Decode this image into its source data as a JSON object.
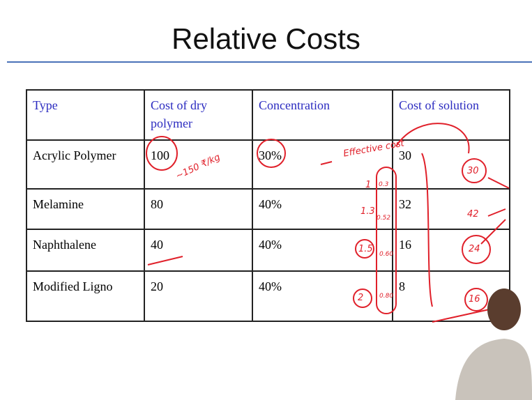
{
  "header": {
    "title": "Relative Costs"
  },
  "table": {
    "columns": [
      "Type",
      "Cost of dry polymer",
      "Concentration",
      "Cost of solution"
    ],
    "rows": [
      [
        "Acrylic Polymer",
        "100",
        "30%",
        "30"
      ],
      [
        "Melamine",
        "80",
        "40%",
        "32"
      ],
      [
        "Naphthalene",
        "40",
        "40%",
        "16"
      ],
      [
        "Modified Ligno",
        "20",
        "40%",
        "8"
      ]
    ]
  },
  "annotations": [
    "~150 ₹/kg",
    "Effective cost",
    "1",
    "0.3",
    "1.3",
    "0.52",
    "1.5",
    "0.60",
    "2",
    "0.80",
    "30",
    "42",
    "24",
    "16"
  ]
}
